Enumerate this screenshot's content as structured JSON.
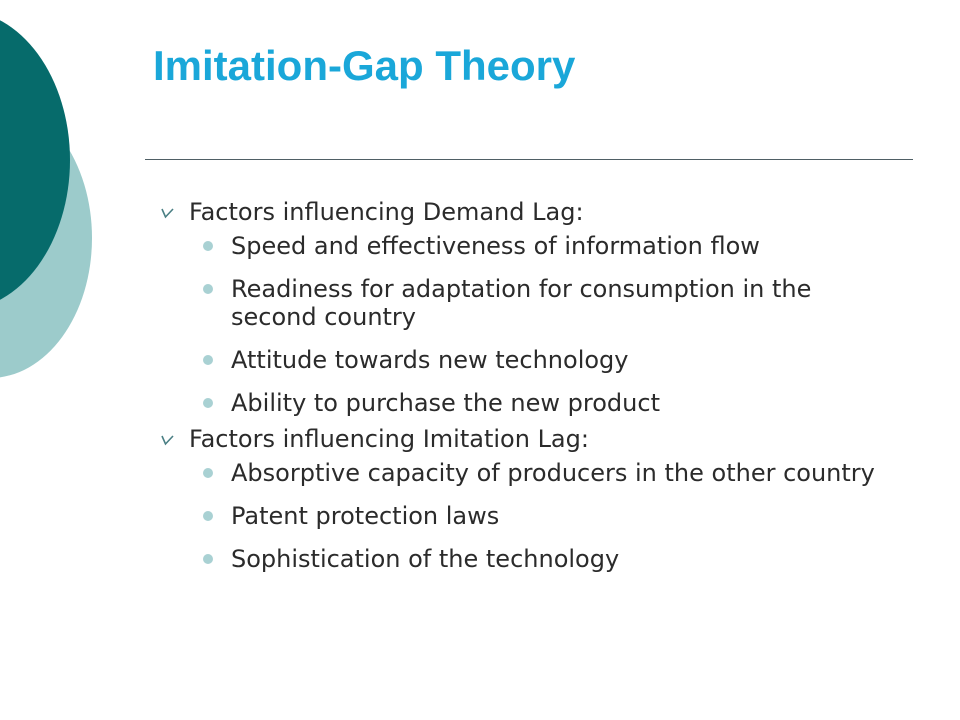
{
  "slide": {
    "title": "Imitation-Gap Theory",
    "colors": {
      "title": "#1aa7d9",
      "dark_teal": "#066b6b",
      "light_teal": "#9ccbcb",
      "bullet_dot": "#a9d1d3",
      "text": "#2b2b2b"
    },
    "sections": [
      {
        "heading": "Factors influencing Demand Lag:",
        "items": [
          "Speed and effectiveness of information flow",
          "Readiness for adaptation for consumption in the second country",
          "Attitude towards new technology",
          "Ability to purchase the new product"
        ]
      },
      {
        "heading": "Factors influencing Imitation Lag:",
        "items": [
          "Absorptive capacity of producers in the other country",
          "Patent protection laws",
          "Sophistication of the technology"
        ]
      }
    ]
  }
}
